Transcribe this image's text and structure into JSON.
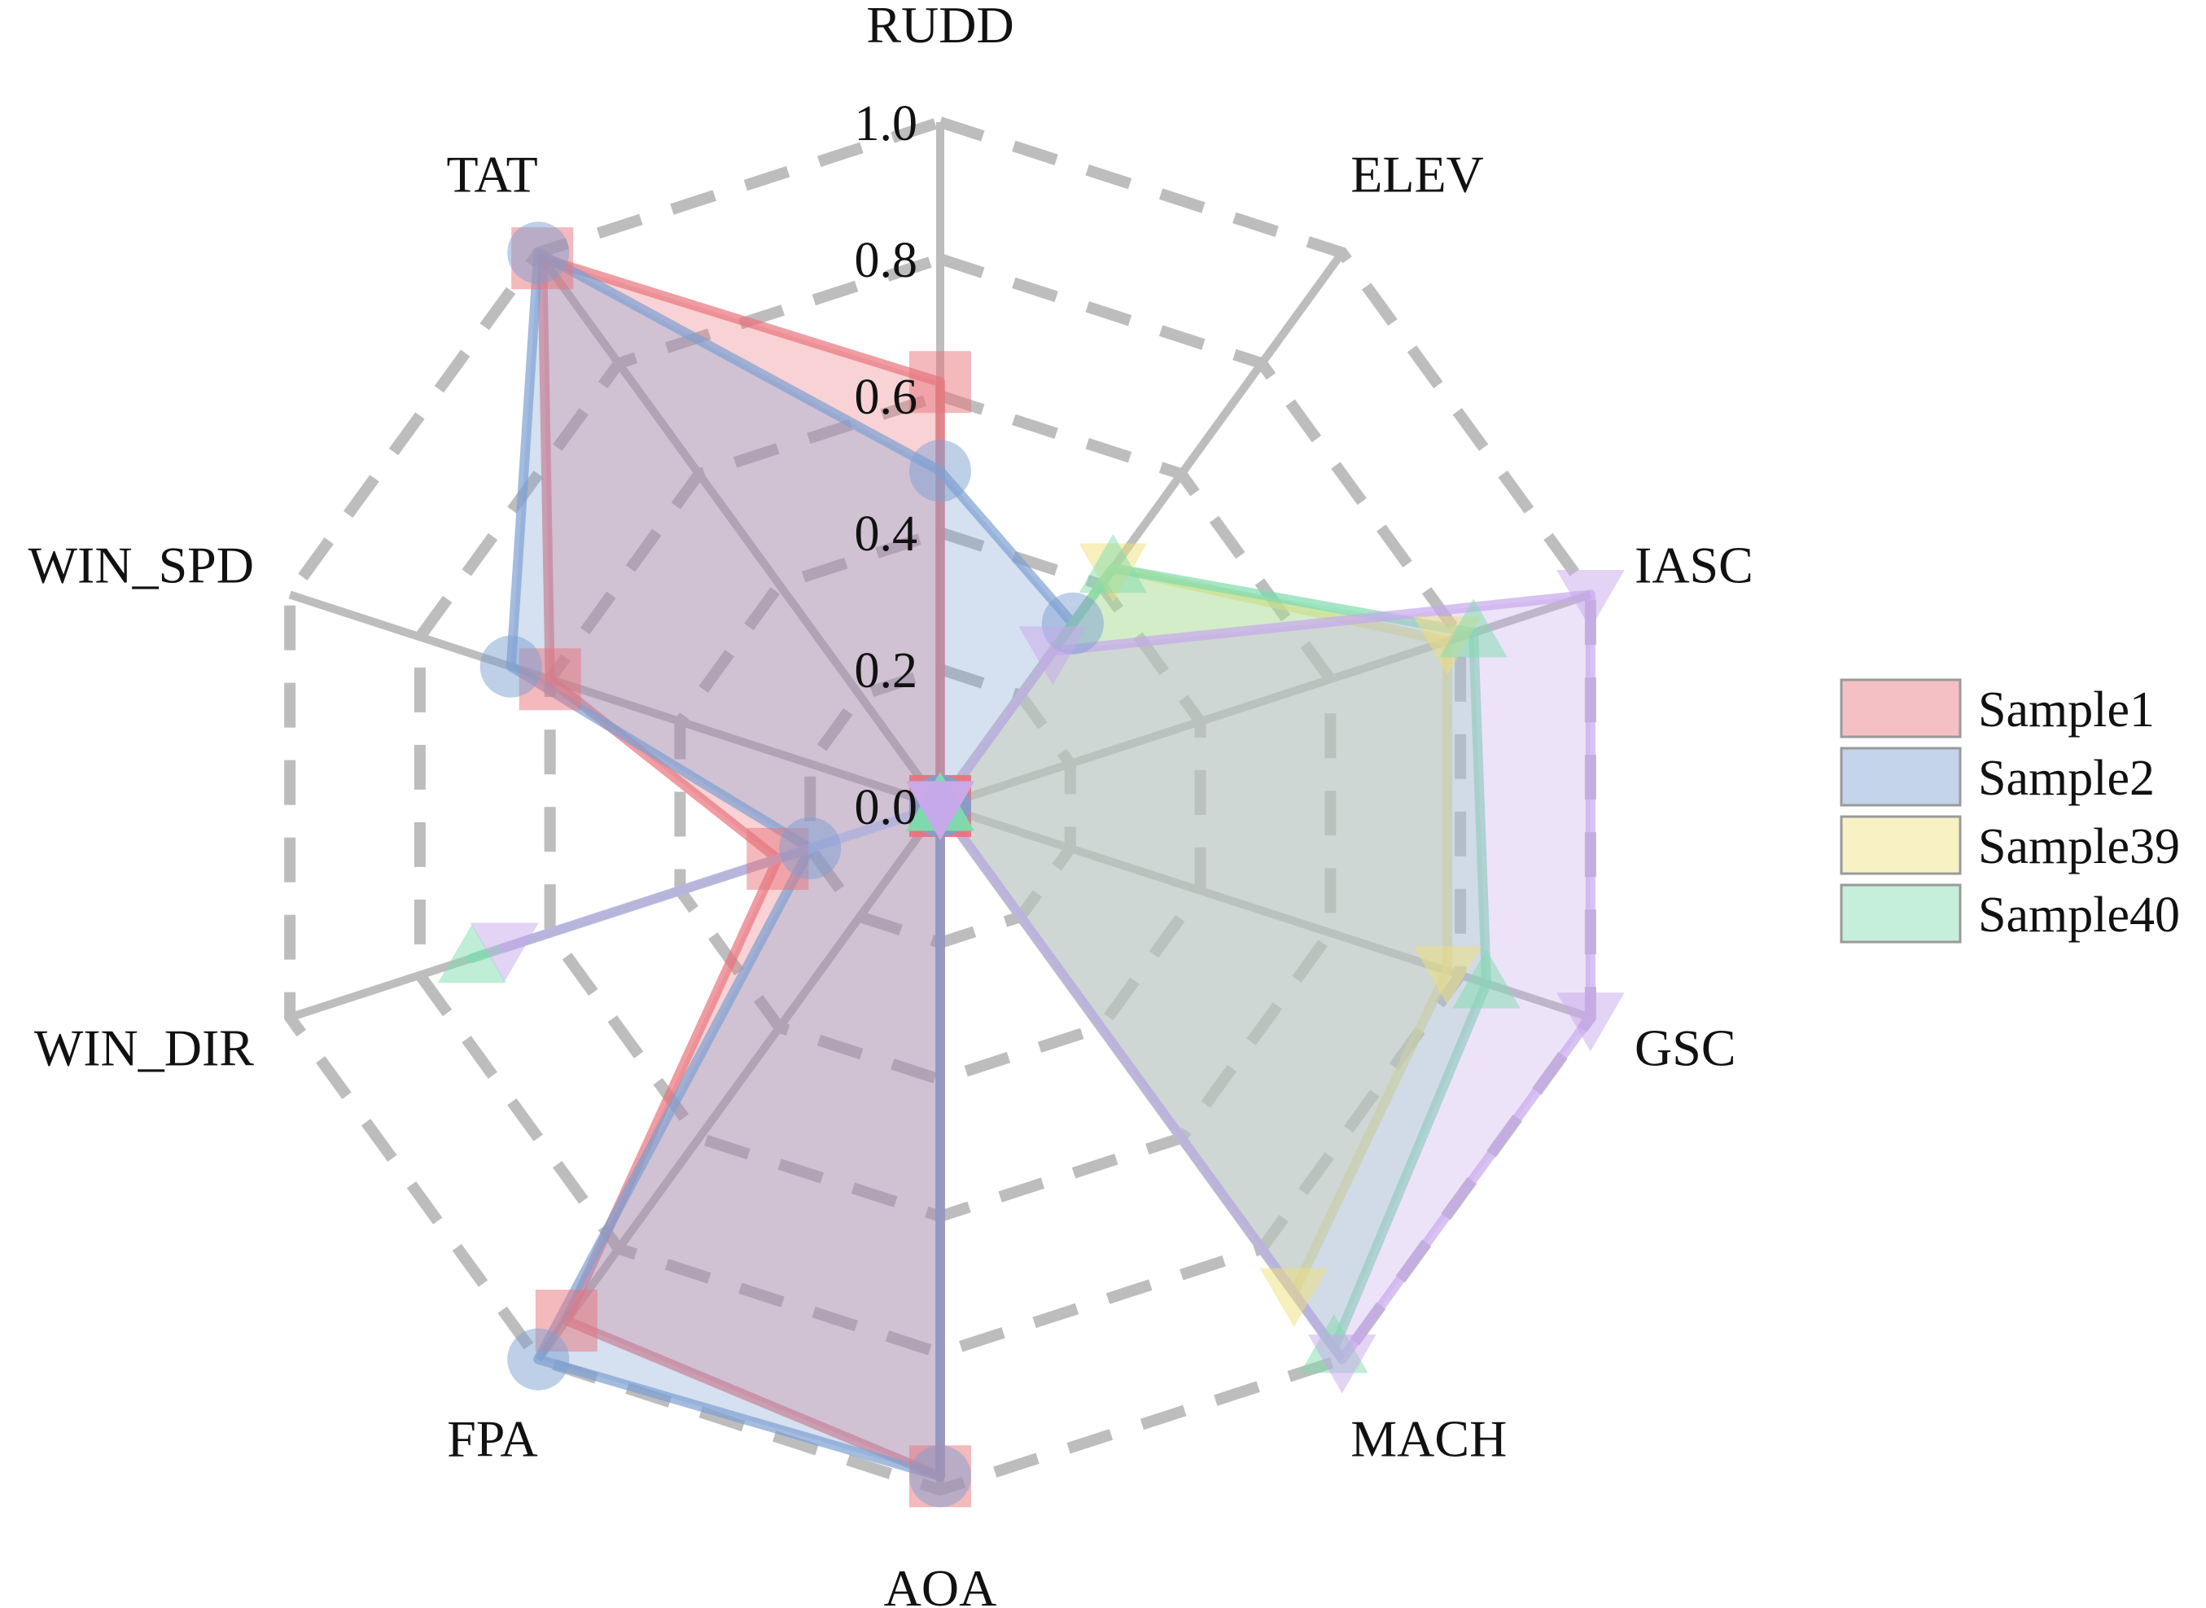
{
  "chart_data": {
    "type": "radar",
    "axes": [
      "RUDD",
      "ELEV",
      "IASC",
      "GSC",
      "MACH",
      "AOA",
      "FPA",
      "WIN_DIR",
      "WIN_SPD",
      "TAT"
    ],
    "rlim": [
      0,
      1.0
    ],
    "ticks": [
      "0.0",
      "0.2",
      "0.4",
      "0.6",
      "0.8",
      "1.0"
    ],
    "tick_values": [
      0,
      0.2,
      0.4,
      0.6,
      0.8,
      1.0
    ],
    "grid": true,
    "grid_style": "dashed",
    "legend_position": "right",
    "series": [
      {
        "name": "Sample1",
        "color": "#e8747c",
        "marker": "square",
        "values": [
          0.62,
          0.0,
          0.0,
          0.0,
          0.0,
          0.98,
          0.93,
          0.25,
          0.6,
          0.99
        ]
      },
      {
        "name": "Sample2",
        "color": "#7d9fd1",
        "marker": "circle",
        "values": [
          0.49,
          0.33,
          0.0,
          0.0,
          0.0,
          0.98,
          1.0,
          0.2,
          0.66,
          1.0
        ]
      },
      {
        "name": "Sample39",
        "color": "#f0e07a",
        "marker": "triangle-down",
        "values": [
          0.0,
          0.43,
          0.78,
          0.78,
          0.88,
          0.0,
          0.0,
          0.0,
          0.0,
          0.0
        ]
      },
      {
        "name": "Sample40",
        "color": "#7fdcae",
        "marker": "triangle-up",
        "values": [
          0.0,
          0.43,
          0.82,
          0.84,
          0.98,
          0.0,
          0.0,
          0.72,
          0.0,
          0.0
        ]
      },
      {
        "name": "",
        "color": "#c8a8ec",
        "marker": "triangle-down",
        "in_legend": false,
        "values": [
          0.0,
          0.28,
          1.0,
          1.0,
          1.0,
          0.0,
          0.0,
          0.67,
          0.0,
          0.0
        ]
      }
    ]
  }
}
